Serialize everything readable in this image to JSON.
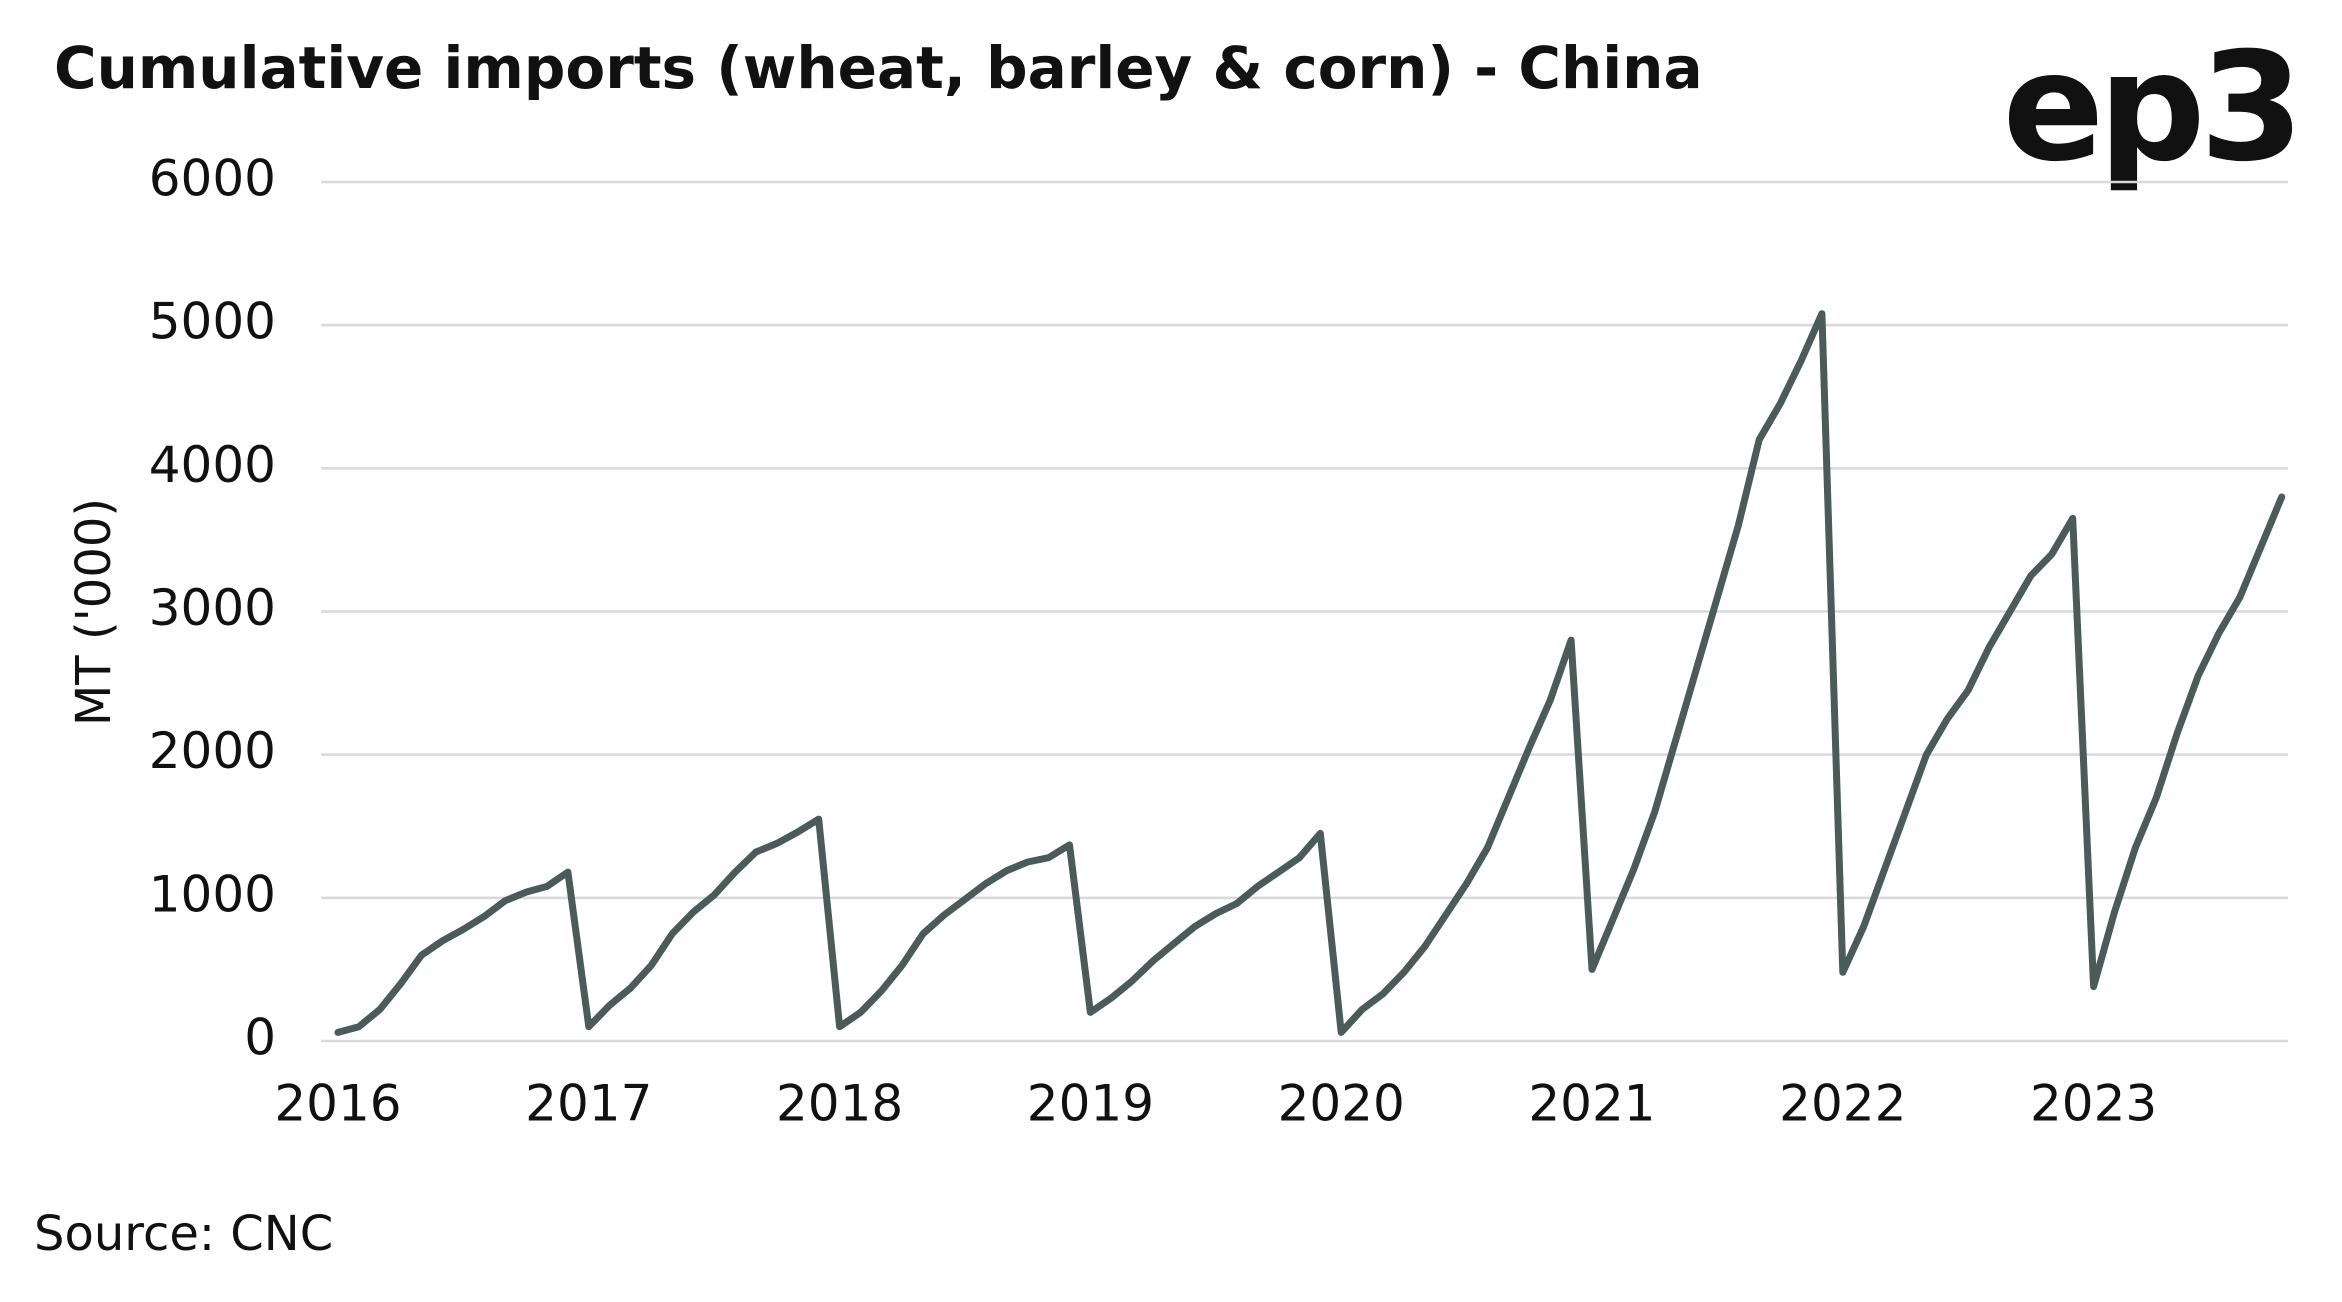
{
  "chart_data": {
    "type": "line",
    "title": "Cumulative imports (wheat, barley & corn) - China",
    "logo": "ep3",
    "ylabel": "MT ('000)",
    "source": "Source: CNC",
    "categories": [
      "2016",
      null,
      null,
      null,
      null,
      null,
      null,
      null,
      null,
      null,
      null,
      null,
      "2017",
      null,
      null,
      null,
      null,
      null,
      null,
      null,
      null,
      null,
      null,
      null,
      "2018",
      null,
      null,
      null,
      null,
      null,
      null,
      null,
      null,
      null,
      null,
      null,
      "2019",
      null,
      null,
      null,
      null,
      null,
      null,
      null,
      null,
      null,
      null,
      null,
      "2020",
      null,
      null,
      null,
      null,
      null,
      null,
      null,
      null,
      null,
      null,
      null,
      "2021",
      null,
      null,
      null,
      null,
      null,
      null,
      null,
      null,
      null,
      null,
      null,
      "2022",
      null,
      null,
      null,
      null,
      null,
      null,
      null,
      null,
      null,
      null,
      null,
      "2023",
      null,
      null,
      null,
      null,
      null,
      null,
      null,
      null,
      null
    ],
    "series": [
      {
        "name": "Cumulative imports",
        "color": "#4b5b59",
        "values": [
          60,
          100,
          220,
          400,
          600,
          700,
          780,
          870,
          980,
          1040,
          1080,
          1180,
          100,
          250,
          370,
          530,
          750,
          900,
          1020,
          1180,
          1320,
          1380,
          1460,
          1550,
          100,
          200,
          350,
          530,
          750,
          880,
          990,
          1100,
          1190,
          1250,
          1280,
          1370,
          200,
          300,
          420,
          560,
          680,
          800,
          890,
          960,
          1080,
          1180,
          1280,
          1450,
          60,
          220,
          330,
          480,
          660,
          880,
          1100,
          1350,
          1700,
          2050,
          2380,
          2800,
          500,
          850,
          1200,
          1600,
          2100,
          2600,
          3100,
          3600,
          4200,
          4450,
          4750,
          5080,
          480,
          800,
          1200,
          1600,
          2000,
          2250,
          2450,
          2750,
          3000,
          3250,
          3400,
          3650,
          380,
          900,
          1350,
          1700,
          2150,
          2550,
          2850,
          3100,
          3450,
          3800
        ]
      }
    ],
    "ylim": [
      0,
      6000
    ],
    "yticks": [
      0,
      1000,
      2000,
      3000,
      4000,
      5000,
      6000
    ],
    "grid": true
  }
}
